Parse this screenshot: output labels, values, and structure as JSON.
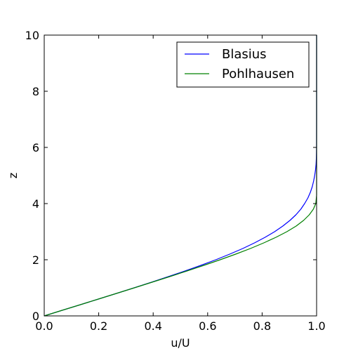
{
  "chart_data": {
    "type": "line",
    "title": "",
    "xlabel": "u/U",
    "ylabel": "z",
    "xlim": [
      0.0,
      1.0
    ],
    "ylim": [
      0,
      10
    ],
    "xticks": [
      "0.0",
      "0.2",
      "0.4",
      "0.6",
      "0.8",
      "1.0"
    ],
    "yticks": [
      "0",
      "2",
      "4",
      "6",
      "8",
      "10"
    ],
    "grid": false,
    "legend_position": "top-right",
    "series": [
      {
        "name": "Blasius",
        "color": "#0000ff",
        "x": [
          0.0,
          0.066,
          0.133,
          0.199,
          0.265,
          0.33,
          0.394,
          0.456,
          0.517,
          0.575,
          0.63,
          0.681,
          0.729,
          0.772,
          0.811,
          0.846,
          0.876,
          0.902,
          0.924,
          0.942,
          0.956,
          0.968,
          0.977,
          0.984,
          0.989,
          0.993,
          0.996,
          0.998,
          0.999,
          0.9995,
          0.9998,
          1.0,
          1.0
        ],
        "y": [
          0.0,
          0.2,
          0.4,
          0.6,
          0.8,
          1.0,
          1.2,
          1.4,
          1.6,
          1.8,
          2.0,
          2.2,
          2.4,
          2.6,
          2.8,
          3.0,
          3.2,
          3.4,
          3.6,
          3.8,
          4.0,
          4.2,
          4.4,
          4.6,
          4.8,
          5.0,
          5.2,
          5.4,
          5.6,
          5.8,
          6.0,
          7.0,
          10.0
        ]
      },
      {
        "name": "Pohlhausen",
        "color": "#008000",
        "x": [
          0.0,
          0.066,
          0.133,
          0.199,
          0.265,
          0.331,
          0.396,
          0.461,
          0.524,
          0.586,
          0.646,
          0.703,
          0.757,
          0.806,
          0.851,
          0.891,
          0.925,
          0.952,
          0.973,
          0.988,
          0.997,
          1.0,
          1.0
        ],
        "y": [
          0.0,
          0.2,
          0.4,
          0.6,
          0.8,
          1.0,
          1.2,
          1.4,
          1.6,
          1.8,
          2.0,
          2.2,
          2.4,
          2.6,
          2.8,
          3.0,
          3.2,
          3.4,
          3.6,
          3.8,
          4.0,
          4.3,
          10.0
        ]
      }
    ]
  }
}
